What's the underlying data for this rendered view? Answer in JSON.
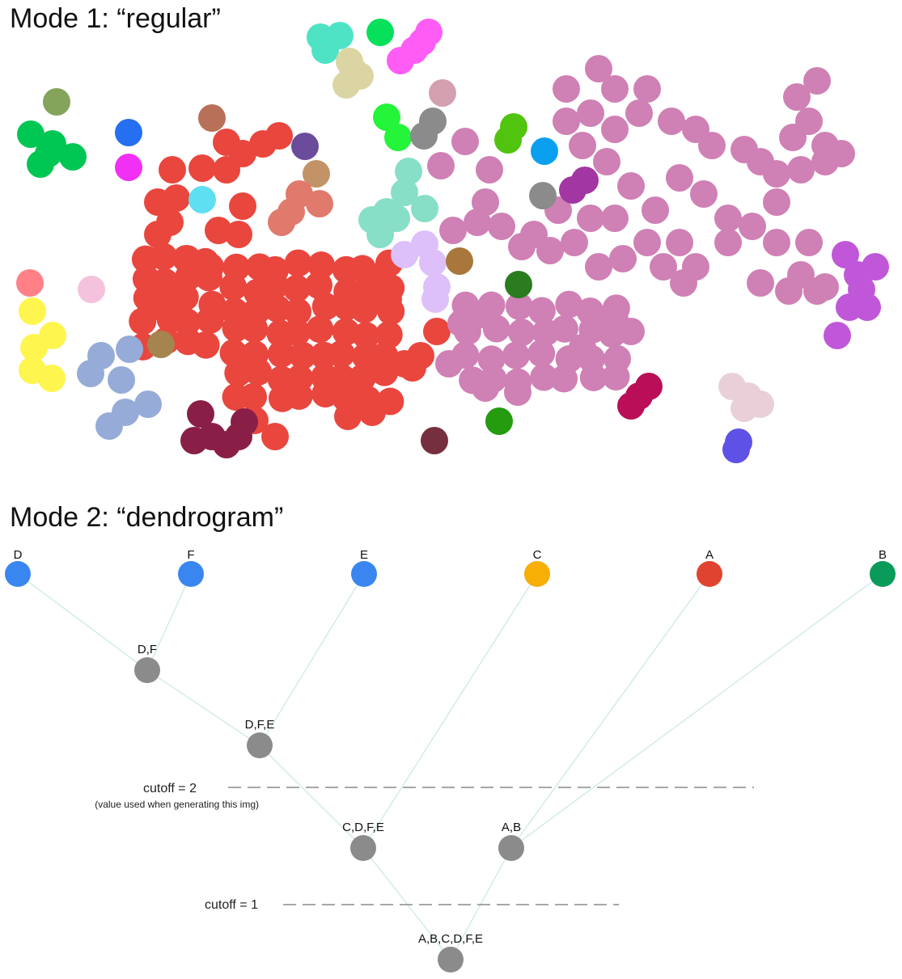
{
  "mode1": {
    "title": "Mode 1: “regular”"
  },
  "mode2": {
    "title": "Mode 2: “dendrogram”",
    "colors": {
      "blue": "#3a86f0",
      "orange": "#f7ae05",
      "red": "#e0432f",
      "green": "#0a9a5a",
      "gray": "#8b8b8b"
    },
    "leaves": [
      {
        "id": "D",
        "label": "D",
        "color": "#3a86f0"
      },
      {
        "id": "F",
        "label": "F",
        "color": "#3a86f0"
      },
      {
        "id": "E",
        "label": "E",
        "color": "#3a86f0"
      },
      {
        "id": "C",
        "label": "C",
        "color": "#f7ae05"
      },
      {
        "id": "A",
        "label": "A",
        "color": "#e0432f"
      },
      {
        "id": "B",
        "label": "B",
        "color": "#0a9a5a"
      }
    ],
    "merges": [
      {
        "id": "DF",
        "label": "D,F",
        "children": [
          "D",
          "F"
        ]
      },
      {
        "id": "DFE",
        "label": "D,F,E",
        "children": [
          "DF",
          "E"
        ]
      },
      {
        "id": "CDFE",
        "label": "C,D,F,E",
        "children": [
          "DFE",
          "C"
        ]
      },
      {
        "id": "AB",
        "label": "A,B",
        "children": [
          "A",
          "B"
        ]
      },
      {
        "id": "ALL",
        "label": "A,B,C,D,F,E",
        "children": [
          "CDFE",
          "AB"
        ]
      }
    ],
    "cutoffs": [
      {
        "label": "cutoff = 2",
        "note": "(value used when generating this img)"
      },
      {
        "label": "cutoff = 1",
        "note": ""
      }
    ]
  }
}
